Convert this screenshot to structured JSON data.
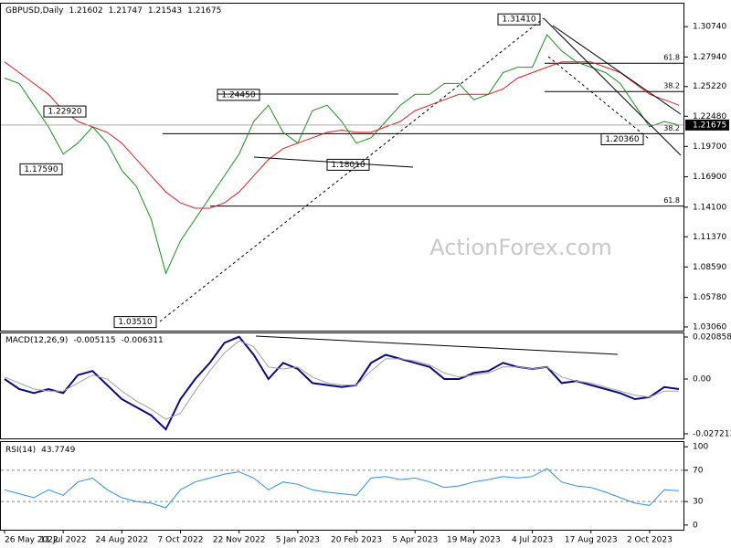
{
  "chart_data": [
    {
      "type": "line",
      "title": "GBPUSD,Daily",
      "ohlc": [
        1.21602,
        1.21747,
        1.21543,
        1.21675
      ],
      "watermark": "ActionForex.com",
      "series": [
        {
          "color": "#1a8f1a",
          "values": [
            1.26,
            1.255,
            1.235,
            1.215,
            1.19,
            1.2,
            1.215,
            1.2,
            1.175,
            1.16,
            1.13,
            1.08,
            1.11,
            1.13,
            1.15,
            1.17,
            1.19,
            1.22,
            1.235,
            1.21,
            1.2,
            1.23,
            1.235,
            1.22,
            1.2,
            1.205,
            1.22,
            1.235,
            1.245,
            1.245,
            1.255,
            1.255,
            1.24,
            1.245,
            1.265,
            1.27,
            1.27,
            1.3,
            1.285,
            1.275,
            1.27,
            1.265,
            1.255,
            1.235,
            1.215,
            1.22,
            1.21675
          ]
        },
        {
          "color": "#e02020",
          "values": [
            1.275,
            1.265,
            1.255,
            1.245,
            1.23,
            1.22,
            1.215,
            1.21,
            1.2,
            1.185,
            1.17,
            1.155,
            1.145,
            1.14,
            1.14,
            1.145,
            1.155,
            1.17,
            1.185,
            1.195,
            1.2,
            1.205,
            1.21,
            1.212,
            1.21,
            1.21,
            1.215,
            1.22,
            1.23,
            1.235,
            1.24,
            1.245,
            1.245,
            1.245,
            1.25,
            1.26,
            1.265,
            1.27,
            1.275,
            1.275,
            1.275,
            1.27,
            1.265,
            1.255,
            1.245,
            1.24,
            1.235
          ]
        }
      ],
      "ylim": [
        1.0272,
        1.3286
      ],
      "yticks": [
        {
          "value": 1.3074,
          "label": "1.30740"
        },
        {
          "value": 1.2794,
          "label": "1.27940"
        },
        {
          "value": 1.2522,
          "label": "1.25220"
        },
        {
          "value": 1.2248,
          "label": "1.22480"
        },
        {
          "value": 1.197,
          "label": "1.19700"
        },
        {
          "value": 1.169,
          "label": "1.16900"
        },
        {
          "value": 1.141,
          "label": "1.14100"
        },
        {
          "value": 1.1137,
          "label": "1.11370"
        },
        {
          "value": 1.0859,
          "label": "1.08590"
        },
        {
          "value": 1.0578,
          "label": "1.05780"
        },
        {
          "value": 1.0306,
          "label": "1.03060"
        }
      ],
      "annotations": [
        {
          "value": 1.3141,
          "label": "1.31410"
        },
        {
          "value": 1.2445,
          "label": "1.24450"
        },
        {
          "value": 1.2292,
          "label": "1.22920"
        },
        {
          "value": 1.1759,
          "label": "1.17590"
        },
        {
          "value": 1.1801,
          "label": "1.18010"
        },
        {
          "value": 1.2036,
          "label": "1.20360"
        },
        {
          "value": 1.0351,
          "label": "1.03510"
        }
      ],
      "fib_levels": [
        {
          "value": 1.2737,
          "label": "61.8"
        },
        {
          "value": 1.2476,
          "label": "38.2"
        },
        {
          "value": 1.2087,
          "label": "38.2"
        },
        {
          "value": 1.142,
          "label": "61.8"
        }
      ],
      "last_price": {
        "value": 1.21675,
        "label": "1.21675"
      }
    },
    {
      "type": "line",
      "title": "MACD(12,26,9)",
      "indicator_values": [
        -0.005115,
        -0.006311
      ],
      "series": [
        {
          "color": "#0a0a80",
          "values": [
            0.0,
            -0.005,
            -0.007,
            -0.005,
            -0.007,
            0.002,
            0.004,
            -0.003,
            -0.01,
            -0.014,
            -0.018,
            -0.025,
            -0.01,
            0.0,
            0.008,
            0.018,
            0.021,
            0.012,
            0.0,
            0.008,
            0.005,
            -0.002,
            -0.003,
            -0.004,
            -0.003,
            0.008,
            0.012,
            0.01,
            0.008,
            0.006,
            0.0,
            0.0,
            0.003,
            0.004,
            0.008,
            0.006,
            0.005,
            0.006,
            -0.002,
            -0.001,
            -0.003,
            -0.005,
            -0.007,
            -0.01,
            -0.009,
            -0.004,
            -0.005
          ]
        },
        {
          "color": "#a0a0a0",
          "values": [
            0.001,
            -0.002,
            -0.005,
            -0.006,
            -0.006,
            -0.002,
            0.002,
            0.0,
            -0.006,
            -0.011,
            -0.015,
            -0.02,
            -0.017,
            -0.006,
            0.004,
            0.013,
            0.019,
            0.016,
            0.006,
            0.005,
            0.006,
            0.001,
            -0.002,
            -0.003,
            -0.003,
            0.004,
            0.01,
            0.01,
            0.009,
            0.007,
            0.003,
            0.001,
            0.002,
            0.003,
            0.006,
            0.006,
            0.005,
            0.006,
            0.001,
            -0.001,
            -0.002,
            -0.004,
            -0.006,
            -0.008,
            -0.009,
            -0.006,
            -0.006
          ]
        }
      ],
      "ylim": [
        -0.02948,
        0.02267
      ],
      "yticks": [
        0.020858,
        {
          "value": 0,
          "label": "0.00"
        },
        -0.027213
      ]
    },
    {
      "type": "line",
      "title": "RSI(14)",
      "indicator_values": [
        43.7749
      ],
      "categories": [
        "26 May 2022",
        null,
        null,
        null,
        "11 Jul 2022",
        null,
        null,
        null,
        "24 Aug 2022",
        null,
        null,
        null,
        "7 Oct 2022",
        null,
        null,
        null,
        "22 Nov 2022",
        null,
        null,
        null,
        "5 Jan 2023",
        null,
        null,
        null,
        "20 Feb 2023",
        null,
        null,
        null,
        "5 Apr 2023",
        null,
        null,
        null,
        "19 May 2023",
        null,
        null,
        null,
        "4 Jul 2023",
        null,
        null,
        null,
        "17 Aug 2023",
        null,
        null,
        null,
        "2 Oct 2023",
        null,
        null
      ],
      "series": [
        {
          "color": "#2e8fe8",
          "values": [
            45,
            40,
            35,
            45,
            38,
            55,
            60,
            45,
            35,
            30,
            28,
            22,
            45,
            55,
            60,
            65,
            68,
            60,
            45,
            55,
            52,
            45,
            42,
            40,
            38,
            60,
            62,
            58,
            60,
            55,
            48,
            50,
            55,
            58,
            62,
            60,
            62,
            72,
            55,
            50,
            48,
            42,
            35,
            28,
            25,
            45,
            43.7749
          ]
        }
      ],
      "ylim": [
        -6,
        106
      ],
      "yticks": [
        100,
        70,
        30,
        0
      ],
      "dashed_levels": [
        70,
        30
      ]
    }
  ]
}
